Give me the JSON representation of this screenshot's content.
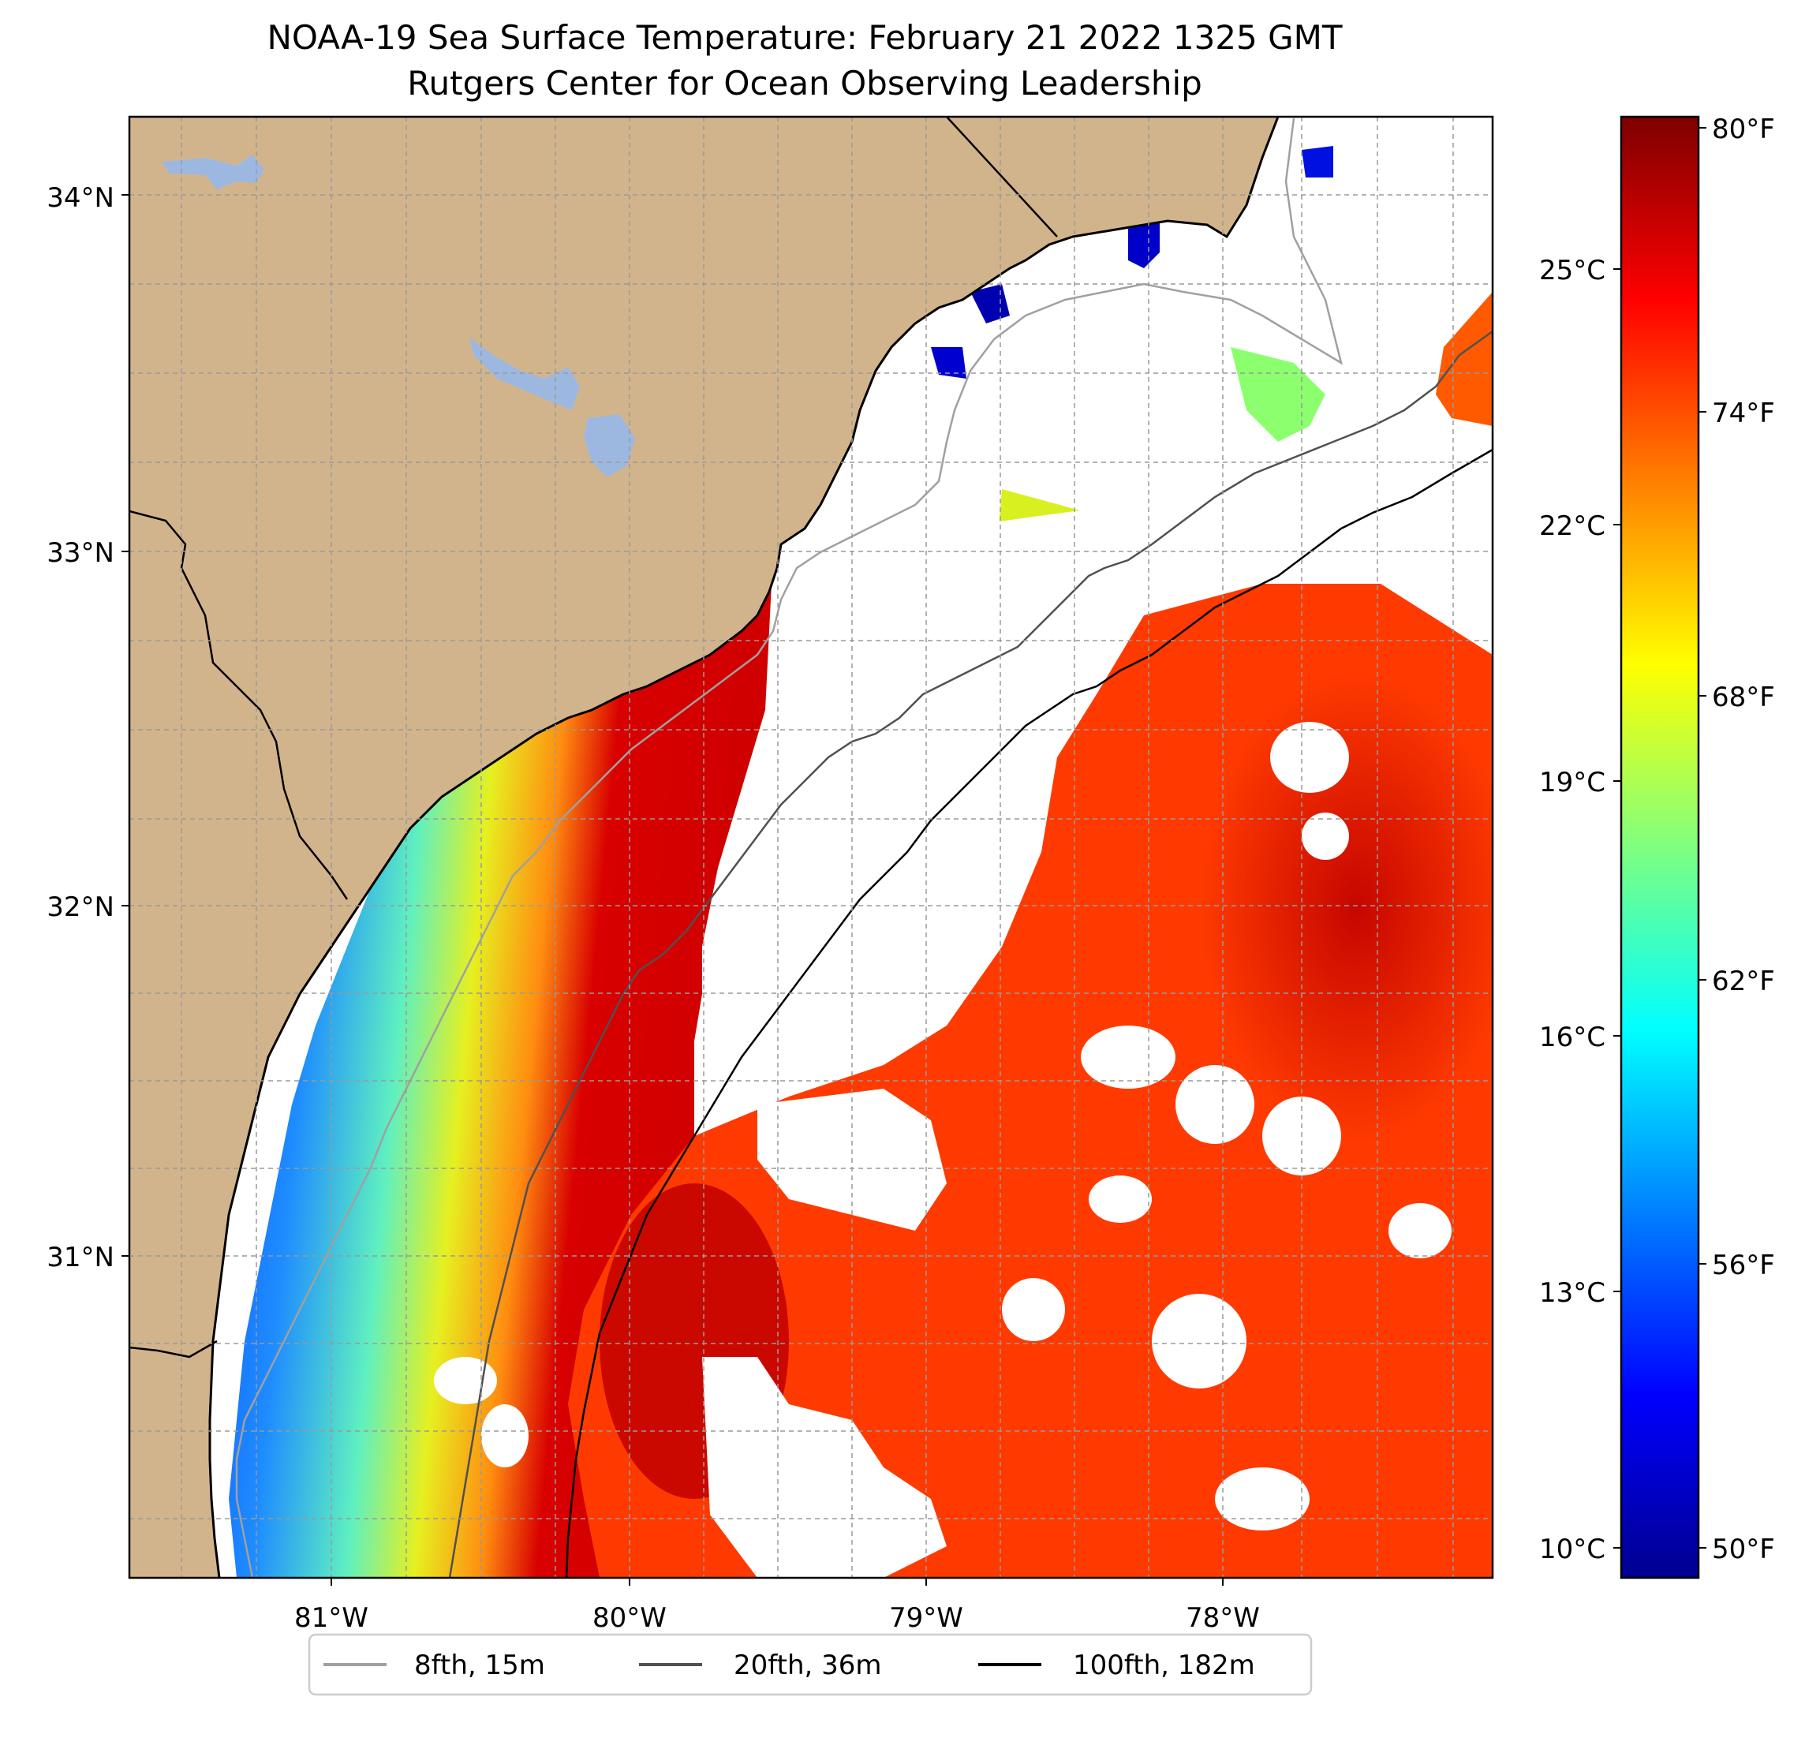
{
  "title": {
    "line1": "NOAA-19 Sea Surface Temperature: February 21 2022 1325 GMT",
    "line2": "Rutgers Center for Ocean Observing Leadership"
  },
  "map": {
    "lat_labels": [
      "34°N",
      "33°N",
      "32°N",
      "31°N"
    ],
    "lon_labels": [
      "81°W",
      "80°W",
      "79°W",
      "78°W"
    ],
    "colors": {
      "land": "#d2b48c",
      "lake": "#9db8e0",
      "missing": "#ffffff",
      "contour_8fth": "#a0a0a0",
      "contour_20fth": "#505050",
      "contour_100fth": "#000000"
    }
  },
  "colorbar": {
    "celsius_labels": [
      "25°C",
      "22°C",
      "19°C",
      "16°C",
      "13°C",
      "10°C"
    ],
    "fahrenheit_labels": [
      "80°F",
      "74°F",
      "68°F",
      "62°F",
      "56°F",
      "50°F"
    ],
    "colormap": "jet"
  },
  "legend": {
    "items": [
      {
        "label": "8fth, 15m",
        "color": "#a0a0a0"
      },
      {
        "label": "20fth, 36m",
        "color": "#505050"
      },
      {
        "label": "100fth, 182m",
        "color": "#000000"
      }
    ]
  }
}
